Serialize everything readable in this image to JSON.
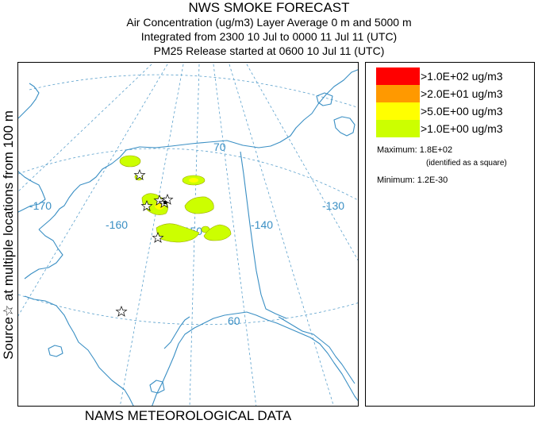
{
  "title": {
    "main": "NWS SMOKE FORECAST",
    "line1": "Air Concentration (ug/m3) Layer Average    0 m and  5000 m",
    "line2": "Integrated from 2300 10 Jul to 0000 11 Jul 11 (UTC)",
    "line3": "PM25 Release started at 0600 10 Jul 11 (UTC)"
  },
  "side_label": "Source☆ at multiple locations   from   100 m",
  "bottom_label": "NAMS METEOROLOGICAL DATA",
  "map": {
    "longitude_labels": [
      "-170",
      "-160",
      "-150",
      "-140",
      "-130"
    ],
    "latitude_labels": [
      "70",
      "60"
    ],
    "colors": {
      "grid": "#5aa0cc",
      "land": "#3a8fc4"
    }
  },
  "legend": {
    "items": [
      {
        "label": ">1.0E+02 ug/m3",
        "color": "#ff0000"
      },
      {
        "label": ">2.0E+01 ug/m3",
        "color": "#ff9900"
      },
      {
        "label": ">5.0E+00 ug/m3",
        "color": "#ffff00"
      },
      {
        "label": ">1.0E+00 ug/m3",
        "color": "#ccff00"
      }
    ],
    "maximum": "Maximum: 1.8E+02",
    "maximum_note": "(identified as a square)",
    "minimum": "Minimum: 1.2E-30"
  }
}
